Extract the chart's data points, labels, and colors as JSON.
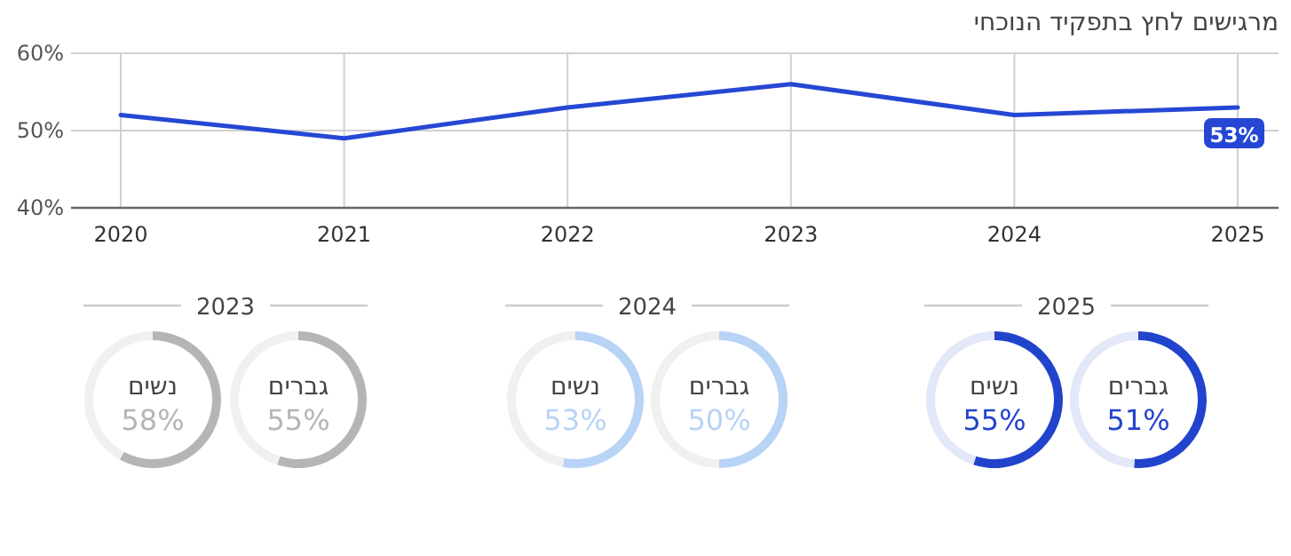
{
  "chart_data": [
    {
      "type": "line",
      "title": "מרגישים לחץ בתפקיד הנוכחי",
      "categories": [
        "2020",
        "2021",
        "2022",
        "2023",
        "2024",
        "2025"
      ],
      "values": [
        52,
        49,
        53,
        56,
        52,
        53
      ],
      "color": "#2647d4",
      "value_labels": [
        null,
        null,
        null,
        null,
        null,
        "53%"
      ],
      "ylim": [
        40,
        60
      ],
      "yticks": [
        {
          "value": 40,
          "label": "40%"
        },
        {
          "value": 50,
          "label": "50%"
        },
        {
          "value": 60,
          "label": "60%"
        }
      ],
      "grid": true
    },
    {
      "type": "donut",
      "title": "2023",
      "categories": [
        "נשים",
        null
      ],
      "values": [
        58,
        42
      ],
      "colors": [
        "#b5b5b5",
        "#f0f0f0"
      ],
      "value_labels": [
        "58%",
        null
      ]
    },
    {
      "type": "donut",
      "categories": [
        "גברים",
        null
      ],
      "values": [
        55,
        45
      ],
      "colors": [
        "#b5b5b5",
        "#f0f0f0"
      ],
      "value_labels": [
        "55%",
        null
      ]
    },
    {
      "type": "donut",
      "title": "2024",
      "categories": [
        "נשים",
        null
      ],
      "values": [
        53,
        47
      ],
      "colors": [
        "#b8d3f6",
        "#f0f0f0"
      ],
      "value_labels": [
        "53%",
        null
      ]
    },
    {
      "type": "donut",
      "categories": [
        "גברים",
        null
      ],
      "values": [
        50,
        50
      ],
      "colors": [
        "#b8d3f6",
        "#f0f0f0"
      ],
      "value_labels": [
        "50%",
        null
      ]
    },
    {
      "type": "donut",
      "title": "2025",
      "categories": [
        "נשים",
        null
      ],
      "values": [
        55,
        45
      ],
      "colors": [
        "#2244cc",
        "#e2e8f8"
      ],
      "value_labels": [
        "55%",
        null
      ]
    },
    {
      "type": "donut",
      "categories": [
        "גברים",
        null
      ],
      "values": [
        51,
        49
      ],
      "colors": [
        "#2244cc",
        "#e2e8f8"
      ],
      "value_labels": [
        "51%",
        null
      ]
    }
  ]
}
